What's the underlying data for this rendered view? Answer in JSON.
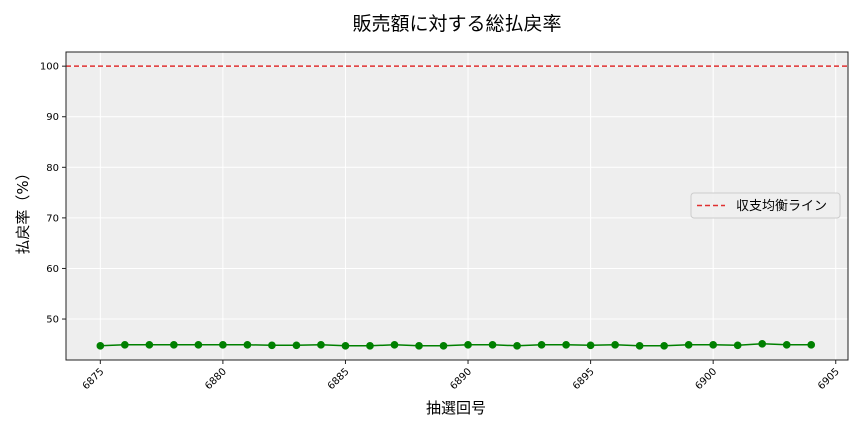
{
  "chart_data": {
    "type": "line",
    "title": "販売額に対する総払戻率",
    "xlabel": "抽選回号",
    "ylabel": "払戻率（%）",
    "xlim": [
      6873.6,
      6905.5
    ],
    "ylim": [
      41.9,
      102.8
    ],
    "xticks": [
      6875,
      6880,
      6885,
      6890,
      6895,
      6900,
      6905
    ],
    "yticks": [
      50,
      60,
      70,
      80,
      90,
      100
    ],
    "grid": true,
    "legend_position": "center right",
    "series": [
      {
        "name": "払戻率",
        "color": "#008000",
        "marker": "circle",
        "x": [
          6875,
          6876,
          6877,
          6878,
          6879,
          6880,
          6881,
          6882,
          6883,
          6884,
          6885,
          6886,
          6887,
          6888,
          6889,
          6890,
          6891,
          6892,
          6893,
          6894,
          6895,
          6896,
          6897,
          6898,
          6899,
          6900,
          6901,
          6902,
          6903,
          6904
        ],
        "values": [
          44.7,
          44.9,
          44.9,
          44.9,
          44.9,
          44.9,
          44.9,
          44.8,
          44.8,
          44.9,
          44.7,
          44.7,
          44.9,
          44.7,
          44.7,
          44.9,
          44.9,
          44.7,
          44.9,
          44.9,
          44.8,
          44.9,
          44.7,
          44.7,
          44.9,
          44.9,
          44.8,
          45.1,
          44.9,
          44.9
        ]
      }
    ],
    "reference_lines": [
      {
        "name": "収支均衡ライン",
        "y": 100,
        "color": "#e03030",
        "style": "dashed"
      }
    ],
    "legend": [
      {
        "label": "収支均衡ライン",
        "color": "#e03030",
        "style": "dashed"
      }
    ],
    "colors": {
      "plot_background": "#eeeeee",
      "grid": "#ffffff",
      "line": "#008000",
      "reference": "#e03030"
    }
  }
}
